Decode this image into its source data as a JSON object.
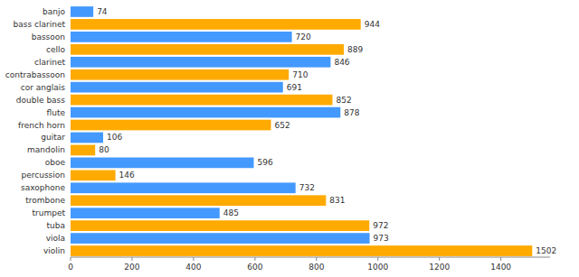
{
  "chart_data": {
    "type": "bar",
    "orientation": "horizontal",
    "categories": [
      "banjo",
      "bass clarinet",
      "bassoon",
      "cello",
      "clarinet",
      "contrabassoon",
      "cor anglais",
      "double bass",
      "flute",
      "french horn",
      "guitar",
      "mandolin",
      "oboe",
      "percussion",
      "saxophone",
      "trombone",
      "trumpet",
      "tuba",
      "viola",
      "violin"
    ],
    "values": [
      74,
      944,
      720,
      889,
      846,
      710,
      691,
      852,
      878,
      652,
      106,
      80,
      596,
      146,
      732,
      831,
      485,
      972,
      973,
      1502
    ],
    "colors": [
      "#4499ff",
      "#ffaa00",
      "#4499ff",
      "#ffaa00",
      "#4499ff",
      "#ffaa00",
      "#4499ff",
      "#ffaa00",
      "#4499ff",
      "#ffaa00",
      "#4499ff",
      "#ffaa00",
      "#4499ff",
      "#ffaa00",
      "#4499ff",
      "#ffaa00",
      "#4499ff",
      "#ffaa00",
      "#4499ff",
      "#ffaa00"
    ],
    "xlim": [
      0,
      1560
    ],
    "xticks": [
      0,
      200,
      400,
      600,
      800,
      1000,
      1200,
      1400
    ],
    "data_labels": true,
    "grid": false
  }
}
